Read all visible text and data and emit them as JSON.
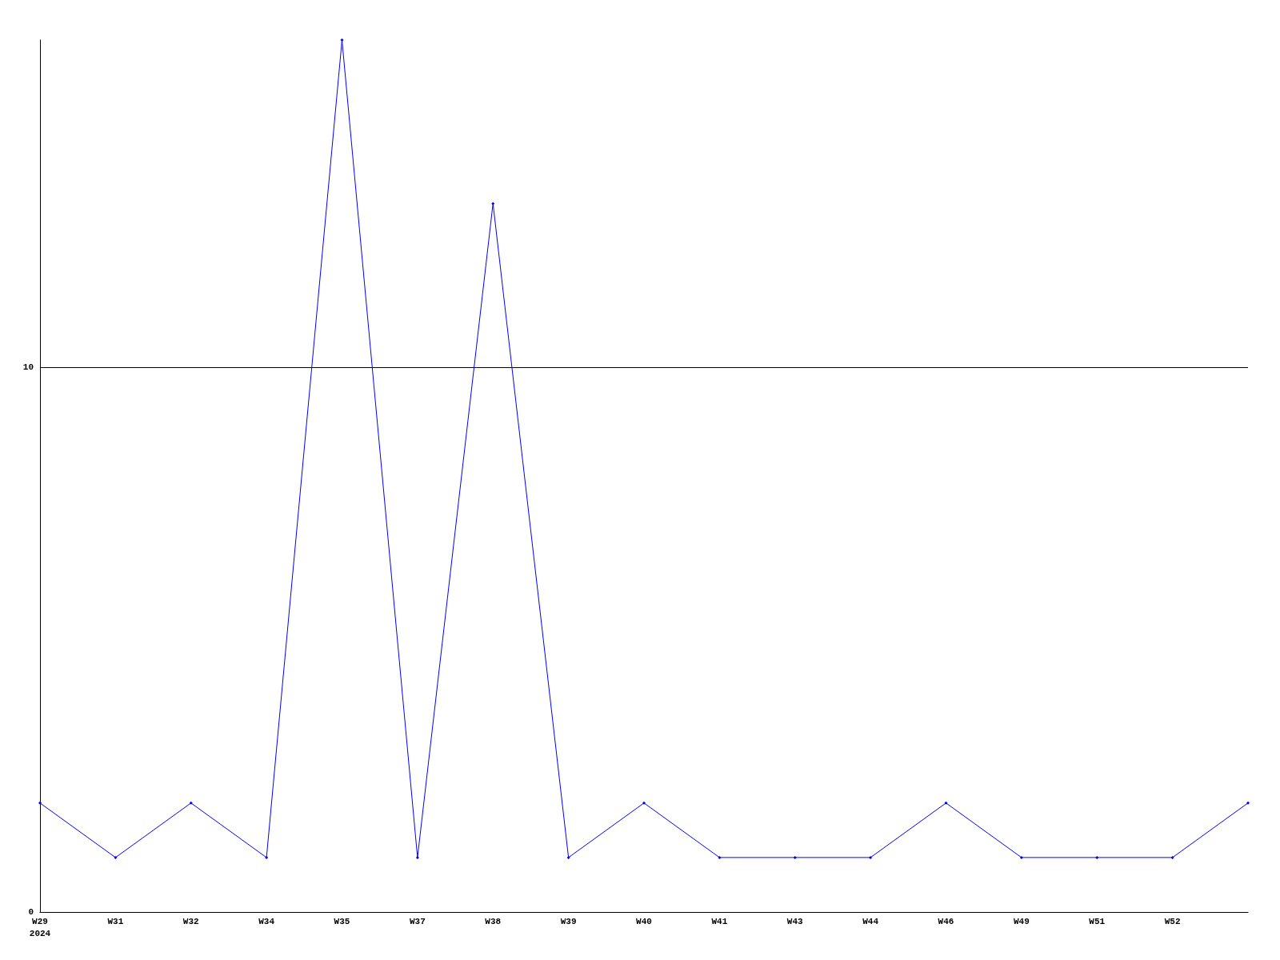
{
  "chart_data": {
    "type": "line",
    "categories": [
      "W29",
      "W31",
      "W32",
      "W34",
      "W35",
      "W37",
      "W38",
      "W39",
      "W40",
      "W41",
      "W43",
      "W44",
      "W46",
      "W49",
      "W51",
      "W52",
      null
    ],
    "series": [
      {
        "color": "#0000ff",
        "values": [
          2,
          1,
          2,
          1,
          16,
          1,
          13,
          1,
          2,
          1,
          1,
          1,
          2,
          1,
          1,
          1,
          2
        ]
      }
    ],
    "ylim": [
      0,
      16
    ],
    "yticks": [
      0,
      10
    ],
    "grid": "y",
    "marker": "diamond",
    "line_style": "solid",
    "annotations": [
      "2024"
    ]
  }
}
